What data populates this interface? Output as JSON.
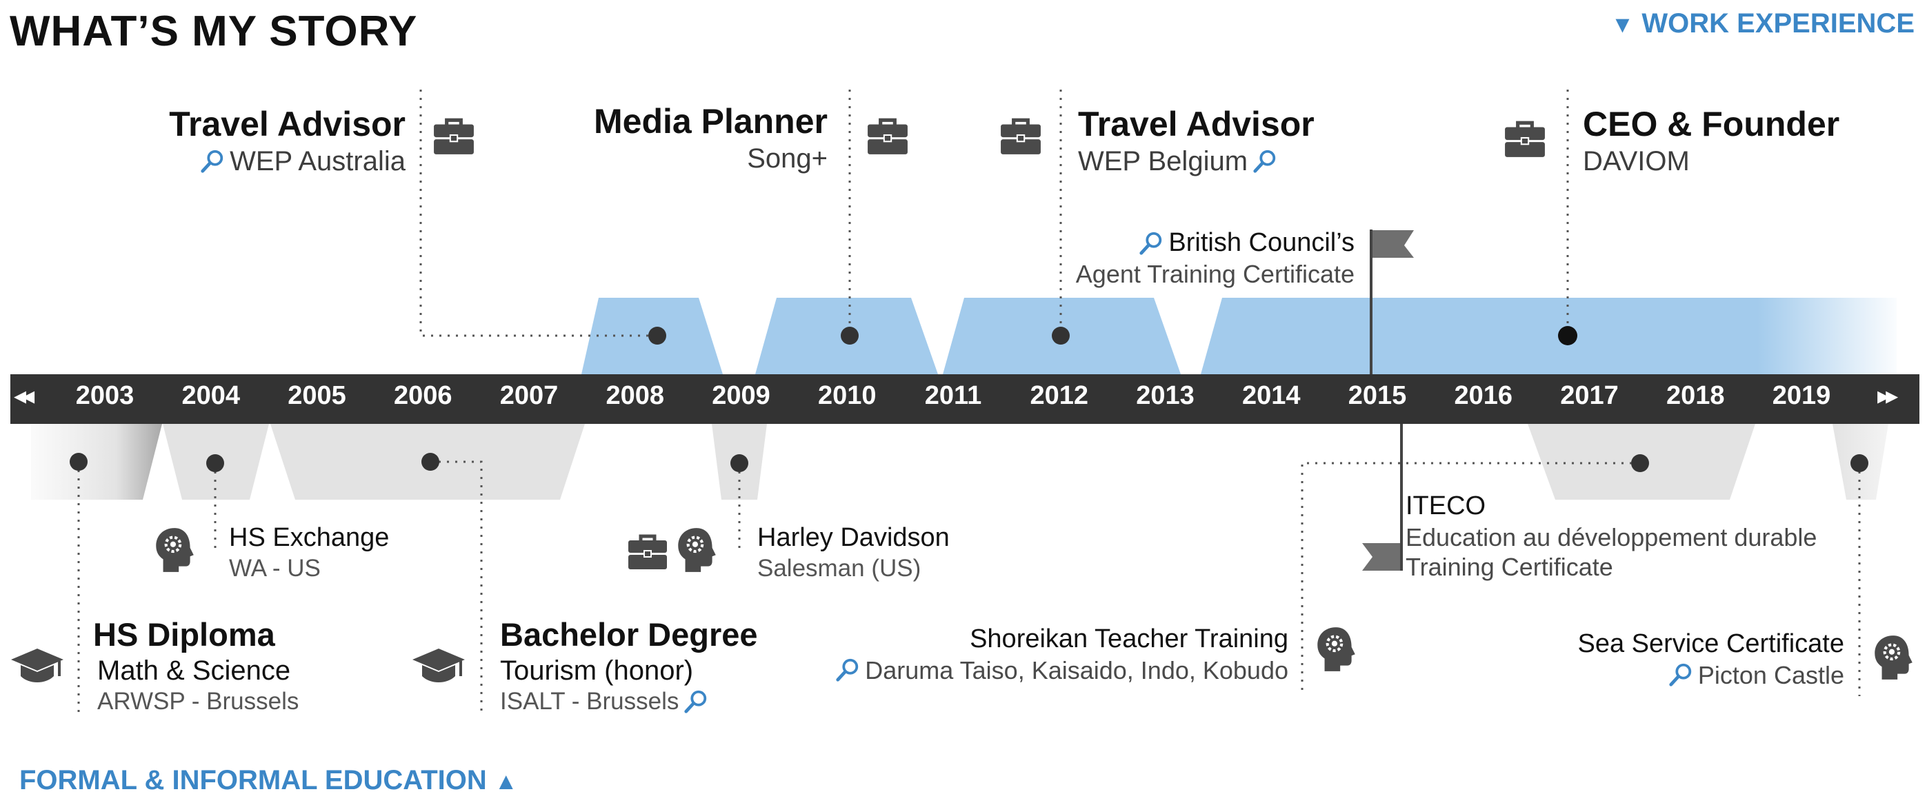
{
  "page": {
    "title": "WHAT’S MY STORY"
  },
  "sections": {
    "work": {
      "arrow": "▼",
      "label": "WORK EXPERIENCE"
    },
    "education": {
      "label": "FORMAL & INFORMAL EDUCATION",
      "arrow": "▲"
    }
  },
  "timeline": {
    "prev_control": "◂◂",
    "next_control": "▸▸",
    "years": [
      "2003",
      "2004",
      "2005",
      "2006",
      "2007",
      "2008",
      "2009",
      "2010",
      "2011",
      "2012",
      "2013",
      "2014",
      "2015",
      "2016",
      "2017",
      "2018",
      "2019"
    ]
  },
  "work_experience": [
    {
      "title": "Travel Advisor",
      "org": "WEP Australia"
    },
    {
      "title": "Media Planner",
      "org": "Song+"
    },
    {
      "title": "Travel Advisor",
      "org": "WEP Belgium"
    },
    {
      "title": "CEO & Founder",
      "org": "DAVIOM"
    }
  ],
  "certificates": {
    "british": {
      "line1": "British Council’s",
      "line2": "Agent Training Certificate"
    },
    "iteco": {
      "line1": "ITECO",
      "line2": "Education au développement durable",
      "line3": "Training Certificate"
    }
  },
  "education": {
    "hs_exchange": {
      "title": "HS Exchange",
      "place": "WA - US"
    },
    "hs_diploma": {
      "title": "HS Diploma",
      "subject": "Math & Science",
      "place": "ARWSP - Brussels"
    },
    "bachelor": {
      "title": "Bachelor Degree",
      "subject": "Tourism (honor)",
      "place": "ISALT - Brussels"
    },
    "harley": {
      "title": "Harley Davidson",
      "role": "Salesman (US)"
    },
    "shoreikan": {
      "title": "Shoreikan Teacher Training",
      "detail": "Daruma Taiso, Kaisaido, Indo, Kobudo"
    },
    "sea_service": {
      "title": "Sea Service Certificate",
      "place": "Picton Castle"
    }
  },
  "colors": {
    "timeline_bar": "#333333",
    "work_band": "#a3cbec",
    "education_band": "#e3e3e3",
    "accent": "#3b86c6",
    "icon": "#4a4a4a"
  }
}
